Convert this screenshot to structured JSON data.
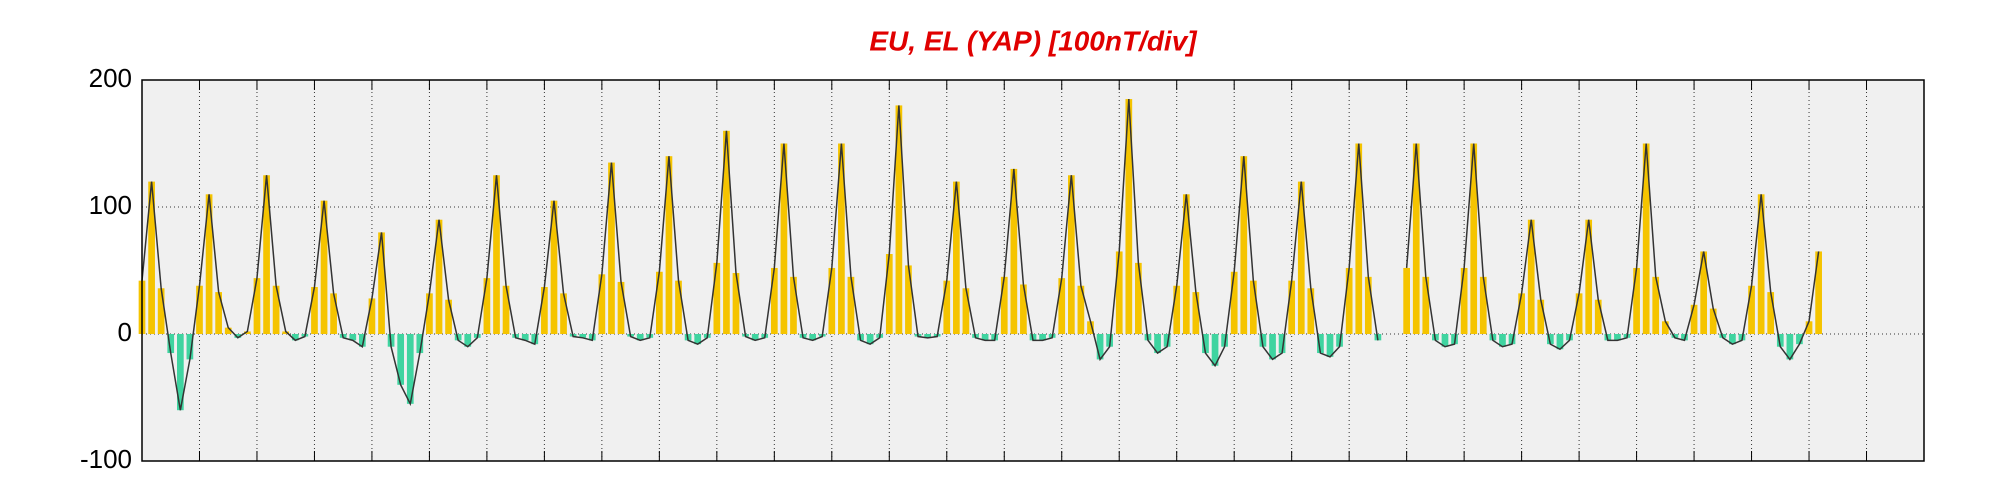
{
  "chart_data": {
    "type": "bar-line",
    "title": "EU, EL (YAP)  [100nT/div]",
    "x": [
      0,
      0.167,
      0.333,
      0.5,
      0.667,
      0.833,
      1,
      1.167,
      1.333,
      1.5,
      1.667,
      1.833,
      2,
      2.167,
      2.333,
      2.5,
      2.667,
      2.833,
      3,
      3.167,
      3.333,
      3.5,
      3.667,
      3.833,
      4,
      4.167,
      4.333,
      4.5,
      4.667,
      4.833,
      5,
      5.167,
      5.333,
      5.5,
      5.667,
      5.833,
      6,
      6.167,
      6.333,
      6.5,
      6.667,
      6.833,
      7,
      7.167,
      7.333,
      7.5,
      7.667,
      7.833,
      8,
      8.167,
      8.333,
      8.5,
      8.667,
      8.833,
      9,
      9.167,
      9.333,
      9.5,
      9.667,
      9.833,
      10,
      10.167,
      10.333,
      10.5,
      10.667,
      10.833,
      11,
      11.167,
      11.333,
      11.5,
      11.667,
      11.833,
      12,
      12.167,
      12.333,
      12.5,
      12.667,
      12.833,
      13,
      13.167,
      13.333,
      13.5,
      13.667,
      13.833,
      14,
      14.167,
      14.333,
      14.5,
      14.667,
      14.833,
      15,
      15.167,
      15.333,
      15.5,
      15.667,
      15.833,
      16,
      16.167,
      16.333,
      16.5,
      16.667,
      16.833,
      17,
      17.167,
      17.333,
      17.5,
      17.667,
      17.833,
      18,
      18.167,
      18.333,
      18.5,
      18.667,
      18.833,
      19,
      19.167,
      19.333,
      19.5,
      19.667,
      19.833,
      20,
      20.167,
      20.333,
      20.5,
      20.667,
      20.833,
      21,
      21.167,
      21.333,
      21.5,
      21.667,
      21.833,
      22,
      22.167,
      22.333,
      22.5,
      22.667,
      22.833,
      23,
      23.167,
      23.333,
      23.5,
      23.667,
      23.833,
      24,
      24.167,
      24.333,
      24.5,
      24.667,
      24.833,
      25,
      25.167,
      25.333,
      25.5,
      25.667,
      25.833,
      26,
      26.167,
      26.333,
      26.5,
      26.667,
      26.833,
      27,
      27.167,
      27.333,
      27.5,
      27.667,
      27.833,
      28,
      28.167,
      28.333,
      28.5,
      28.667,
      28.833,
      29,
      29.167
    ],
    "values": [
      42,
      120,
      36,
      -15,
      -60,
      -20,
      38,
      110,
      33,
      5,
      -3,
      2,
      44,
      125,
      38,
      2,
      -5,
      -2,
      37,
      105,
      32,
      -3,
      -5,
      -10,
      28,
      80,
      -10,
      -40,
      -55,
      -15,
      32,
      90,
      27,
      -5,
      -10,
      -3,
      44,
      125,
      38,
      -3,
      -5,
      -8,
      37,
      105,
      32,
      -2,
      -3,
      -5,
      47,
      135,
      41,
      -2,
      -5,
      -3,
      49,
      140,
      42,
      -5,
      -8,
      -3,
      56,
      160,
      48,
      -2,
      -5,
      -3,
      52,
      150,
      45,
      -3,
      -5,
      -2,
      52,
      150,
      45,
      -5,
      -8,
      -3,
      63,
      180,
      54,
      -2,
      -3,
      -2,
      42,
      120,
      36,
      -3,
      -5,
      -5,
      45,
      130,
      39,
      -5,
      -5,
      -3,
      44,
      125,
      38,
      10,
      -20,
      -10,
      65,
      185,
      56,
      -5,
      -15,
      -10,
      38,
      110,
      33,
      -15,
      -25,
      -10,
      49,
      140,
      42,
      -10,
      -20,
      -15,
      42,
      120,
      36,
      -15,
      -18,
      -10,
      52,
      150,
      45,
      -5,
      null,
      null,
      52,
      150,
      45,
      -5,
      -10,
      -8,
      52,
      150,
      45,
      -5,
      -10,
      -8,
      32,
      90,
      27,
      -8,
      -12,
      -5,
      32,
      90,
      27,
      -5,
      -5,
      -3,
      52,
      150,
      45,
      10,
      -3,
      -5,
      23,
      65,
      20,
      -3,
      -8,
      -5,
      38,
      110,
      33,
      -10,
      -20,
      -8,
      10,
      65
    ],
    "colors": {
      "positive": "#f5c400",
      "negative": "#3fd4a0",
      "line": "#333333"
    },
    "xlim": [
      0,
      31
    ],
    "xticks": [
      0,
      1,
      2,
      3,
      4,
      5,
      6,
      7,
      8,
      9,
      10,
      11,
      12,
      13,
      14,
      15,
      16,
      17,
      18,
      19,
      20,
      21,
      22,
      23,
      24,
      25,
      26,
      27,
      28,
      29,
      30,
      31
    ],
    "ylim": [
      -100,
      200
    ],
    "yticks": [
      -100,
      0,
      100,
      200
    ],
    "grid": true
  }
}
